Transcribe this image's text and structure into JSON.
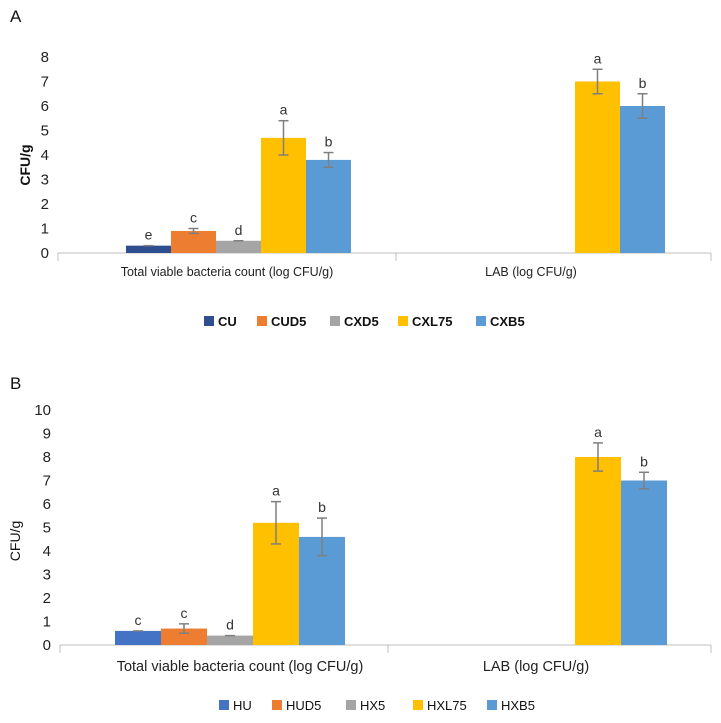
{
  "chart_data": [
    {
      "panel_label": "A",
      "type": "bar",
      "ylabel": "CFU/g",
      "ylim": [
        0,
        8
      ],
      "yticks": [
        0,
        1,
        2,
        3,
        4,
        5,
        6,
        7,
        8
      ],
      "categories": [
        "Total viable bacteria count (log CFU/g)",
        "LAB (log CFU/g)"
      ],
      "series": [
        {
          "name": "CU",
          "color": "#2E4E8F",
          "values": [
            0.3,
            null
          ],
          "errors": [
            0.0,
            null
          ],
          "letters": [
            "e",
            null
          ]
        },
        {
          "name": "CUD5",
          "color": "#ED7D31",
          "values": [
            0.9,
            null
          ],
          "errors": [
            0.1,
            null
          ],
          "letters": [
            "c",
            null
          ]
        },
        {
          "name": "CXD5",
          "color": "#A5A5A5",
          "values": [
            0.5,
            null
          ],
          "errors": [
            0.0,
            null
          ],
          "letters": [
            "d",
            null
          ]
        },
        {
          "name": "CXL75",
          "color": "#FFC000",
          "values": [
            4.7,
            7.0
          ],
          "errors": [
            0.7,
            0.5
          ],
          "letters": [
            "a",
            "a"
          ]
        },
        {
          "name": "CXB5",
          "color": "#5B9BD5",
          "values": [
            3.8,
            6.0
          ],
          "errors": [
            0.3,
            0.5
          ],
          "letters": [
            "b",
            "b"
          ]
        }
      ]
    },
    {
      "panel_label": "B",
      "type": "bar",
      "ylabel": "CFU/g",
      "ylim": [
        0,
        10
      ],
      "yticks": [
        0,
        1,
        2,
        3,
        4,
        5,
        6,
        7,
        8,
        9,
        10
      ],
      "categories": [
        "Total viable bacteria count (log CFU/g)",
        "LAB (log CFU/g)"
      ],
      "series": [
        {
          "name": "HU",
          "color": "#4472C4",
          "values": [
            0.6,
            null
          ],
          "errors": [
            0.0,
            null
          ],
          "letters": [
            "c",
            null
          ]
        },
        {
          "name": "HUD5",
          "color": "#ED7D31",
          "values": [
            0.7,
            null
          ],
          "errors": [
            0.2,
            null
          ],
          "letters": [
            "c",
            null
          ]
        },
        {
          "name": "HX5",
          "color": "#A5A5A5",
          "values": [
            0.4,
            null
          ],
          "errors": [
            0.0,
            null
          ],
          "letters": [
            "d",
            null
          ]
        },
        {
          "name": "HXL75",
          "color": "#FFC000",
          "values": [
            5.2,
            8.0
          ],
          "errors": [
            0.9,
            0.6
          ],
          "letters": [
            "a",
            "a"
          ]
        },
        {
          "name": "HXB5",
          "color": "#5B9BD5",
          "values": [
            4.6,
            7.0
          ],
          "errors": [
            0.8,
            0.35
          ],
          "letters": [
            "b",
            "b"
          ]
        }
      ]
    }
  ]
}
